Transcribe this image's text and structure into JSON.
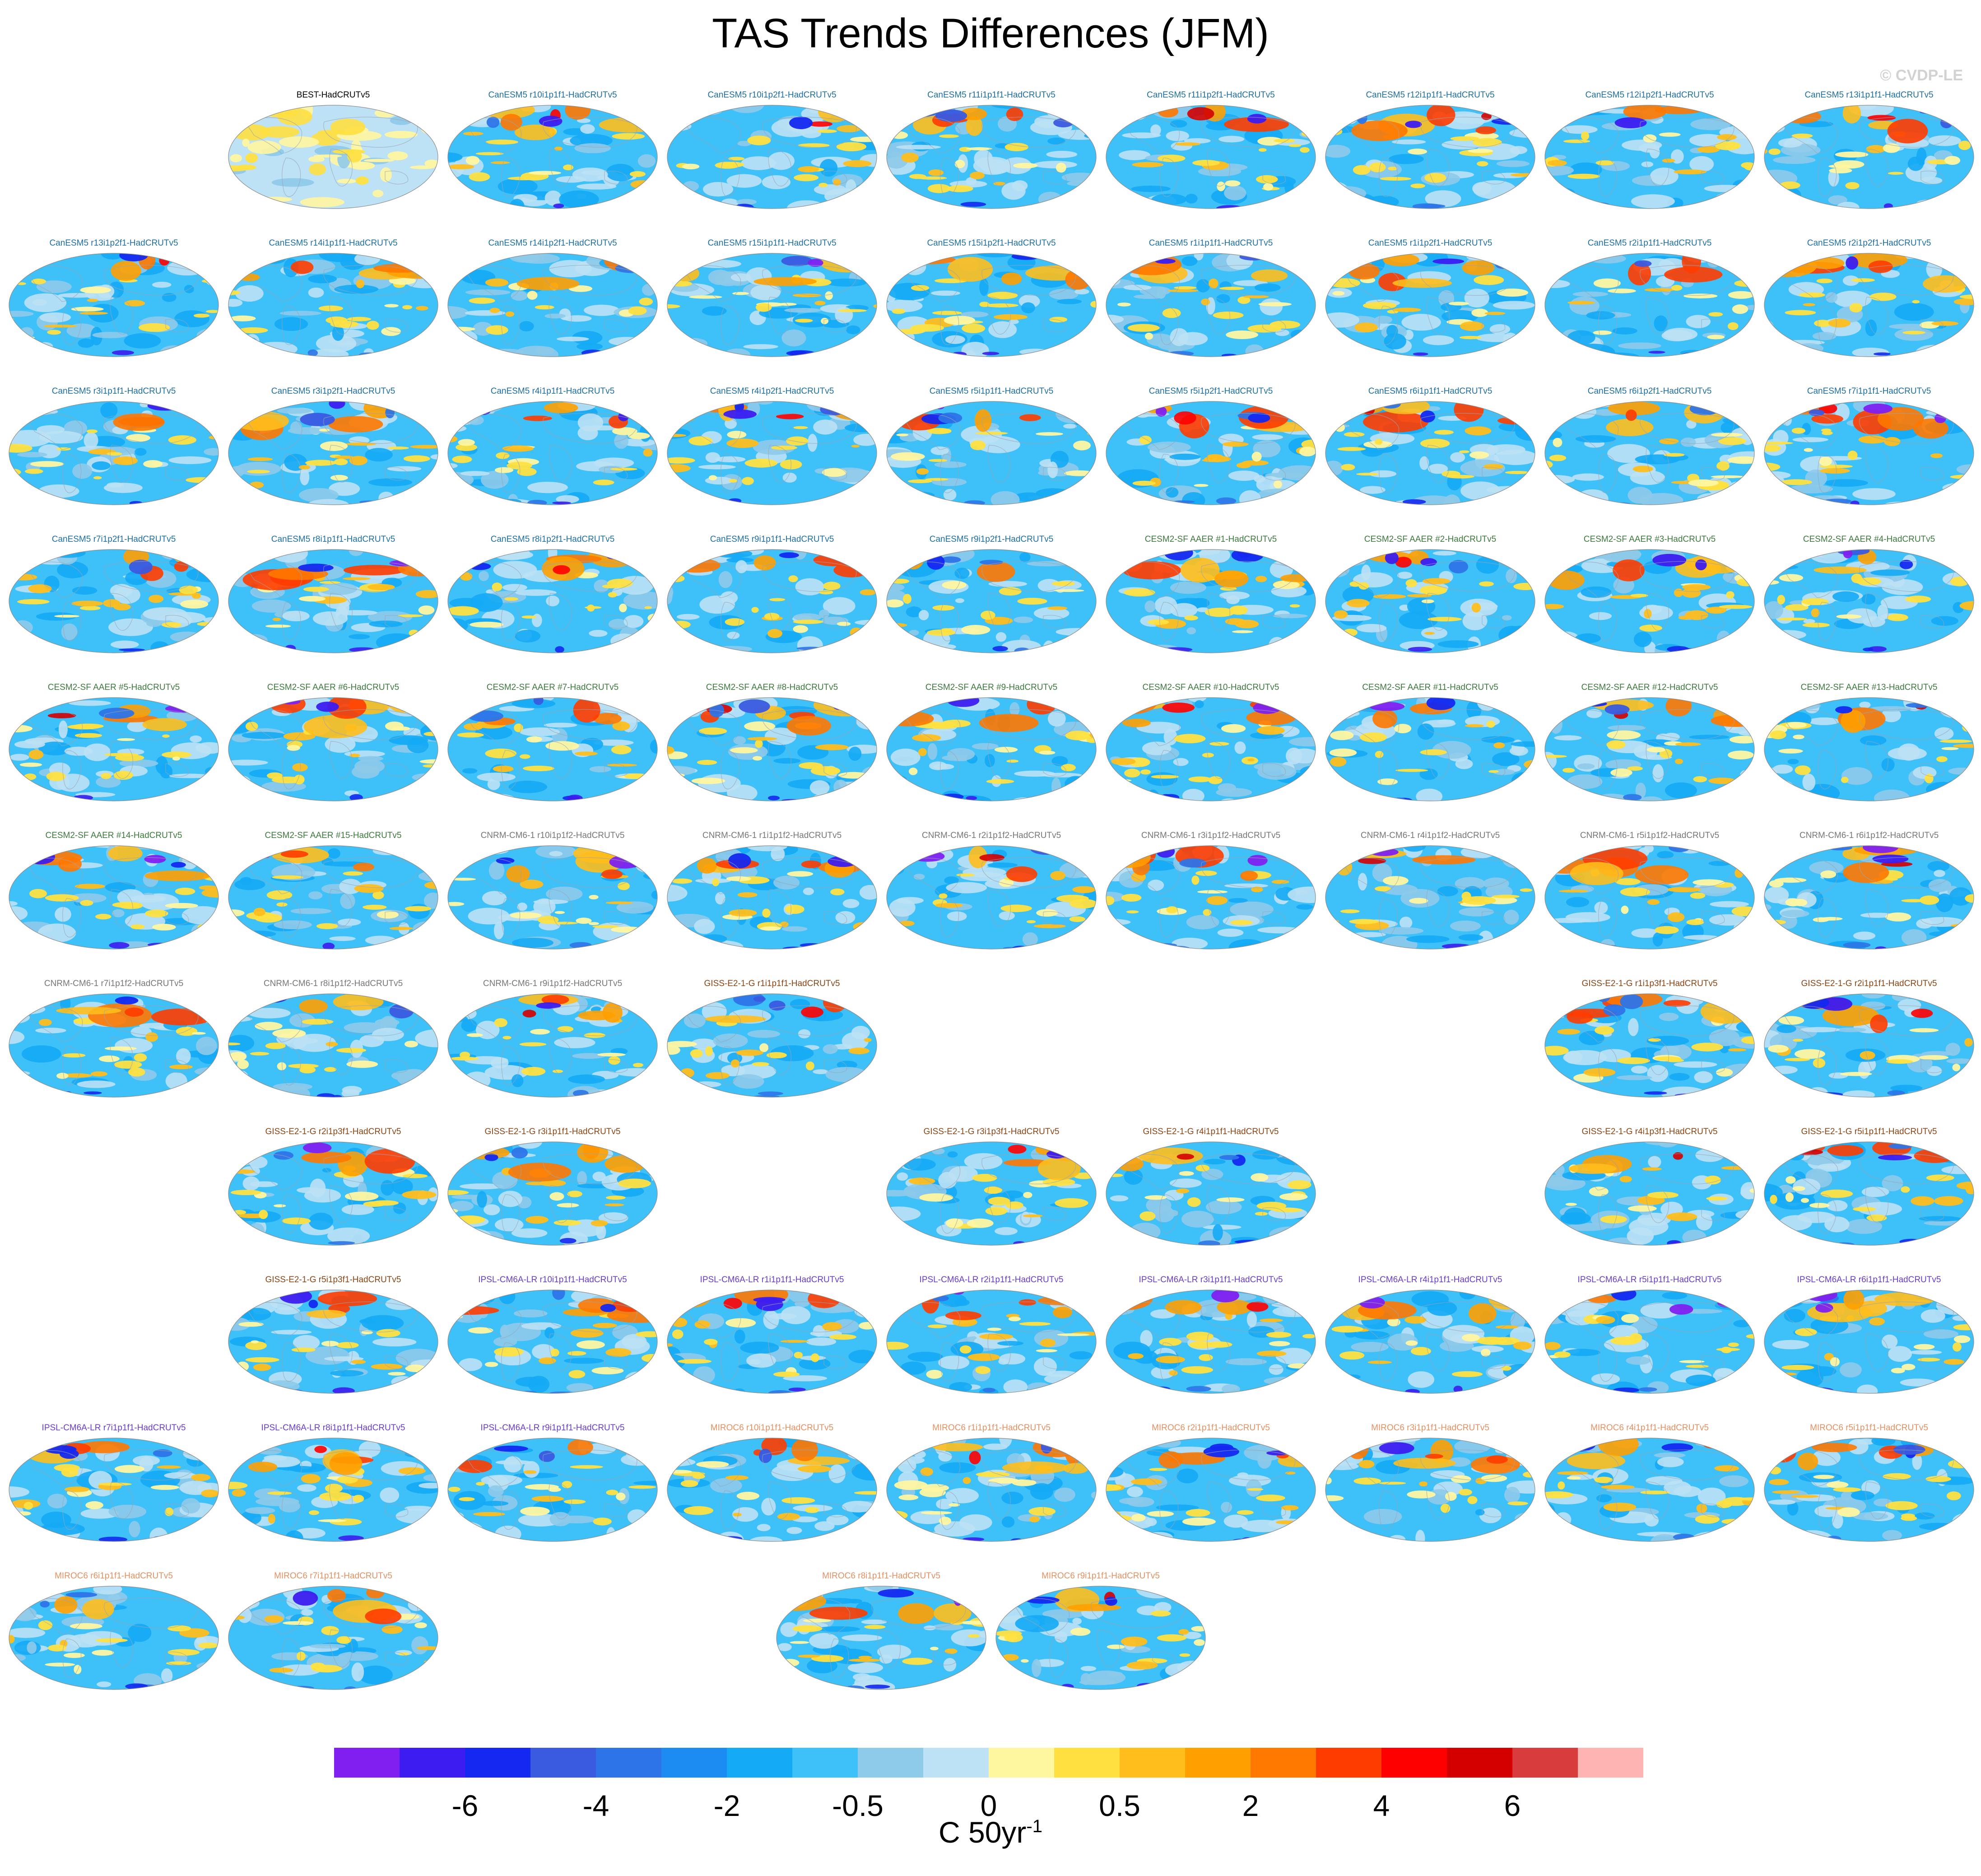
{
  "title": "TAS Trends Differences (JFM)",
  "copyright": "© CVDP-LE",
  "units": {
    "base": "C 50yr",
    "exponent": "-1"
  },
  "group_colors": {
    "BEST": "#000000",
    "CanESM5": "#1d6fa3",
    "CESM2-SF": "#3c7a3c",
    "CNRM-CM6-1": "#777777",
    "GISS-E2-1-G": "#8b4513",
    "IPSL-CM6A-LR": "#6a3cc9",
    "MIROC6": "#e49060"
  },
  "panels": [
    {
      "label": "BEST-HadCRUTv5",
      "group": "BEST",
      "variant": "obs"
    },
    {
      "label": "CanESM5 r10i1p1f1-HadCRUTv5",
      "group": "CanESM5"
    },
    {
      "label": "CanESM5 r10i1p2f1-HadCRUTv5",
      "group": "CanESM5"
    },
    {
      "label": "CanESM5 r11i1p1f1-HadCRUTv5",
      "group": "CanESM5"
    },
    {
      "label": "CanESM5 r11i1p2f1-HadCRUTv5",
      "group": "CanESM5"
    },
    {
      "label": "CanESM5 r12i1p1f1-HadCRUTv5",
      "group": "CanESM5"
    },
    {
      "label": "CanESM5 r12i1p2f1-HadCRUTv5",
      "group": "CanESM5"
    },
    {
      "label": "CanESM5 r13i1p1f1-HadCRUTv5",
      "group": "CanESM5"
    },
    {
      "label": "CanESM5 r13i1p2f1-HadCRUTv5",
      "group": "CanESM5"
    },
    {
      "label": "CanESM5 r14i1p1f1-HadCRUTv5",
      "group": "CanESM5"
    },
    {
      "label": "CanESM5 r14i1p2f1-HadCRUTv5",
      "group": "CanESM5"
    },
    {
      "label": "CanESM5 r15i1p1f1-HadCRUTv5",
      "group": "CanESM5"
    },
    {
      "label": "CanESM5 r15i1p2f1-HadCRUTv5",
      "group": "CanESM5"
    },
    {
      "label": "CanESM5 r1i1p1f1-HadCRUTv5",
      "group": "CanESM5"
    },
    {
      "label": "CanESM5 r1i1p2f1-HadCRUTv5",
      "group": "CanESM5"
    },
    {
      "label": "CanESM5 r2i1p1f1-HadCRUTv5",
      "group": "CanESM5"
    },
    {
      "label": "CanESM5 r2i1p2f1-HadCRUTv5",
      "group": "CanESM5"
    },
    {
      "label": "CanESM5 r3i1p1f1-HadCRUTv5",
      "group": "CanESM5"
    },
    {
      "label": "CanESM5 r3i1p2f1-HadCRUTv5",
      "group": "CanESM5"
    },
    {
      "label": "CanESM5 r4i1p1f1-HadCRUTv5",
      "group": "CanESM5"
    },
    {
      "label": "CanESM5 r4i1p2f1-HadCRUTv5",
      "group": "CanESM5"
    },
    {
      "label": "CanESM5 r5i1p1f1-HadCRUTv5",
      "group": "CanESM5"
    },
    {
      "label": "CanESM5 r5i1p2f1-HadCRUTv5",
      "group": "CanESM5"
    },
    {
      "label": "CanESM5 r6i1p1f1-HadCRUTv5",
      "group": "CanESM5"
    },
    {
      "label": "CanESM5 r6i1p2f1-HadCRUTv5",
      "group": "CanESM5"
    },
    {
      "label": "CanESM5 r7i1p1f1-HadCRUTv5",
      "group": "CanESM5"
    },
    {
      "label": "CanESM5 r7i1p2f1-HadCRUTv5",
      "group": "CanESM5"
    },
    {
      "label": "CanESM5 r8i1p1f1-HadCRUTv5",
      "group": "CanESM5"
    },
    {
      "label": "CanESM5 r8i1p2f1-HadCRUTv5",
      "group": "CanESM5"
    },
    {
      "label": "CanESM5 r9i1p1f1-HadCRUTv5",
      "group": "CanESM5"
    },
    {
      "label": "CanESM5 r9i1p2f1-HadCRUTv5",
      "group": "CanESM5"
    },
    {
      "label": "CESM2-SF AAER #1-HadCRUTv5",
      "group": "CESM2-SF"
    },
    {
      "label": "CESM2-SF AAER #2-HadCRUTv5",
      "group": "CESM2-SF"
    },
    {
      "label": "CESM2-SF AAER #3-HadCRUTv5",
      "group": "CESM2-SF"
    },
    {
      "label": "CESM2-SF AAER #4-HadCRUTv5",
      "group": "CESM2-SF"
    },
    {
      "label": "CESM2-SF AAER #5-HadCRUTv5",
      "group": "CESM2-SF"
    },
    {
      "label": "CESM2-SF AAER #6-HadCRUTv5",
      "group": "CESM2-SF"
    },
    {
      "label": "CESM2-SF AAER #7-HadCRUTv5",
      "group": "CESM2-SF"
    },
    {
      "label": "CESM2-SF AAER #8-HadCRUTv5",
      "group": "CESM2-SF"
    },
    {
      "label": "CESM2-SF AAER #9-HadCRUTv5",
      "group": "CESM2-SF"
    },
    {
      "label": "CESM2-SF AAER #10-HadCRUTv5",
      "group": "CESM2-SF"
    },
    {
      "label": "CESM2-SF AAER #11-HadCRUTv5",
      "group": "CESM2-SF"
    },
    {
      "label": "CESM2-SF AAER #12-HadCRUTv5",
      "group": "CESM2-SF"
    },
    {
      "label": "CESM2-SF AAER #13-HadCRUTv5",
      "group": "CESM2-SF"
    },
    {
      "label": "CESM2-SF AAER #14-HadCRUTv5",
      "group": "CESM2-SF"
    },
    {
      "label": "CESM2-SF AAER #15-HadCRUTv5",
      "group": "CESM2-SF"
    },
    {
      "label": "CNRM-CM6-1 r10i1p1f2-HadCRUTv5",
      "group": "CNRM-CM6-1"
    },
    {
      "label": "CNRM-CM6-1 r1i1p1f2-HadCRUTv5",
      "group": "CNRM-CM6-1"
    },
    {
      "label": "CNRM-CM6-1 r2i1p1f2-HadCRUTv5",
      "group": "CNRM-CM6-1"
    },
    {
      "label": "CNRM-CM6-1 r3i1p1f2-HadCRUTv5",
      "group": "CNRM-CM6-1"
    },
    {
      "label": "CNRM-CM6-1 r4i1p1f2-HadCRUTv5",
      "group": "CNRM-CM6-1"
    },
    {
      "label": "CNRM-CM6-1 r5i1p1f2-HadCRUTv5",
      "group": "CNRM-CM6-1"
    },
    {
      "label": "CNRM-CM6-1 r6i1p1f2-HadCRUTv5",
      "group": "CNRM-CM6-1"
    },
    {
      "label": "CNRM-CM6-1 r7i1p1f2-HadCRUTv5",
      "group": "CNRM-CM6-1"
    },
    {
      "label": "CNRM-CM6-1 r8i1p1f2-HadCRUTv5",
      "group": "CNRM-CM6-1"
    },
    {
      "label": "CNRM-CM6-1 r9i1p1f2-HadCRUTv5",
      "group": "CNRM-CM6-1"
    },
    {
      "label": "GISS-E2-1-G r1i1p1f1-HadCRUTv5",
      "group": "GISS-E2-1-G"
    },
    null,
    null,
    null,
    {
      "label": "GISS-E2-1-G r1i1p3f1-HadCRUTv5",
      "group": "GISS-E2-1-G"
    },
    {
      "label": "GISS-E2-1-G r2i1p1f1-HadCRUTv5",
      "group": "GISS-E2-1-G"
    },
    null,
    {
      "label": "GISS-E2-1-G r2i1p3f1-HadCRUTv5",
      "group": "GISS-E2-1-G"
    },
    {
      "label": "GISS-E2-1-G r3i1p1f1-HadCRUTv5",
      "group": "GISS-E2-1-G"
    },
    null,
    {
      "label": "GISS-E2-1-G r3i1p3f1-HadCRUTv5",
      "group": "GISS-E2-1-G"
    },
    {
      "label": "GISS-E2-1-G r4i1p1f1-HadCRUTv5",
      "group": "GISS-E2-1-G"
    },
    null,
    {
      "label": "GISS-E2-1-G r4i1p3f1-HadCRUTv5",
      "group": "GISS-E2-1-G"
    },
    {
      "label": "GISS-E2-1-G r5i1p1f1-HadCRUTv5",
      "group": "GISS-E2-1-G"
    },
    null,
    {
      "label": "GISS-E2-1-G r5i1p3f1-HadCRUTv5",
      "group": "GISS-E2-1-G"
    },
    {
      "label": "IPSL-CM6A-LR r10i1p1f1-HadCRUTv5",
      "group": "IPSL-CM6A-LR"
    },
    {
      "label": "IPSL-CM6A-LR r1i1p1f1-HadCRUTv5",
      "group": "IPSL-CM6A-LR"
    },
    {
      "label": "IPSL-CM6A-LR r2i1p1f1-HadCRUTv5",
      "group": "IPSL-CM6A-LR"
    },
    {
      "label": "IPSL-CM6A-LR r3i1p1f1-HadCRUTv5",
      "group": "IPSL-CM6A-LR"
    },
    {
      "label": "IPSL-CM6A-LR r4i1p1f1-HadCRUTv5",
      "group": "IPSL-CM6A-LR"
    },
    {
      "label": "IPSL-CM6A-LR r5i1p1f1-HadCRUTv5",
      "group": "IPSL-CM6A-LR"
    },
    {
      "label": "IPSL-CM6A-LR r6i1p1f1-HadCRUTv5",
      "group": "IPSL-CM6A-LR"
    },
    {
      "label": "IPSL-CM6A-LR r7i1p1f1-HadCRUTv5",
      "group": "IPSL-CM6A-LR"
    },
    {
      "label": "IPSL-CM6A-LR r8i1p1f1-HadCRUTv5",
      "group": "IPSL-CM6A-LR"
    },
    {
      "label": "IPSL-CM6A-LR r9i1p1f1-HadCRUTv5",
      "group": "IPSL-CM6A-LR"
    },
    {
      "label": "MIROC6 r10i1p1f1-HadCRUTv5",
      "group": "MIROC6"
    },
    {
      "label": "MIROC6 r1i1p1f1-HadCRUTv5",
      "group": "MIROC6"
    },
    {
      "label": "MIROC6 r2i1p1f1-HadCRUTv5",
      "group": "MIROC6"
    },
    {
      "label": "MIROC6 r3i1p1f1-HadCRUTv5",
      "group": "MIROC6"
    },
    {
      "label": "MIROC6 r4i1p1f1-HadCRUTv5",
      "group": "MIROC6"
    },
    {
      "label": "MIROC6 r5i1p1f1-HadCRUTv5",
      "group": "MIROC6"
    },
    {
      "label": "MIROC6 r6i1p1f1-HadCRUTv5",
      "group": "MIROC6"
    },
    {
      "label": "MIROC6 r7i1p1f1-HadCRUTv5",
      "group": "MIROC6"
    }
  ],
  "final_row": [
    {
      "label": "MIROC6 r8i1p1f1-HadCRUTv5",
      "group": "MIROC6"
    },
    {
      "label": "MIROC6 r9i1p1f1-HadCRUTv5",
      "group": "MIROC6"
    }
  ],
  "colorbar": {
    "colors": [
      "#8020f0",
      "#3c1cf0",
      "#1428f0",
      "#3a5ae0",
      "#2d74e8",
      "#1c8cf2",
      "#14aaf5",
      "#3ec0f8",
      "#8ecaea",
      "#bde1f5",
      "#fff6a0",
      "#ffe040",
      "#ffbe1c",
      "#ffa000",
      "#ff7800",
      "#ff3c00",
      "#ff0000",
      "#d40000",
      "#d83c3c",
      "#ffb4b4"
    ],
    "labels": [
      "-6",
      "-4",
      "-2",
      "-0.5",
      "0",
      "0.5",
      "2",
      "4",
      "6"
    ]
  }
}
